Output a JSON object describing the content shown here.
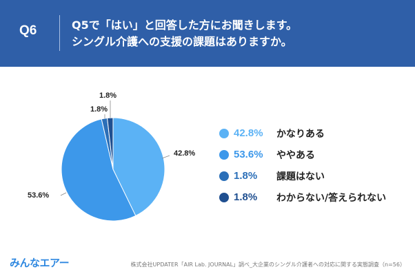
{
  "header": {
    "question_number": "Q6",
    "title_line1": "Q5で「はい」と回答した方にお聞きします。",
    "title_line2": "シングル介護への支援の課題はありますか。"
  },
  "chart_data": {
    "type": "pie",
    "title": "シングル介護への支援の課題はありますか。",
    "start_angle_deg": 0,
    "direction": "clockwise",
    "slices": [
      {
        "label": "かなりある",
        "value": 42.8,
        "value_label": "42.8%",
        "color": "#5bb2f5"
      },
      {
        "label": "ややある",
        "value": 53.6,
        "value_label": "53.6%",
        "color": "#3d98ea"
      },
      {
        "label": "課題はない",
        "value": 1.8,
        "value_label": "1.8%",
        "color": "#2b6fb8"
      },
      {
        "label": "わからない/答えられない",
        "value": 1.8,
        "value_label": "1.8%",
        "color": "#1f4f90"
      }
    ],
    "legend_position": "right"
  },
  "footer": {
    "logo": "みんなエアー",
    "source": "株式会社UPDATER「AIR Lab. JOURNAL」調べ_大企業のシングル介護者への対応に関する実態調査（n=56）"
  }
}
